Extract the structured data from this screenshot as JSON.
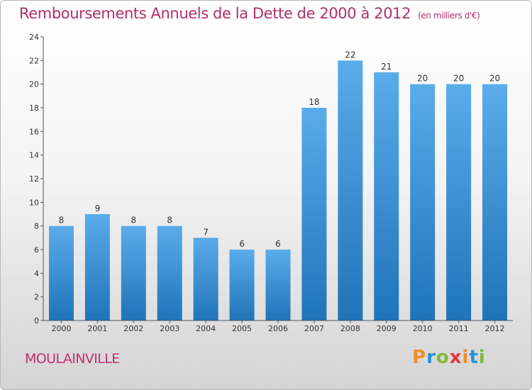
{
  "header": {
    "title": "Remboursements Annuels de la Dette de 2000 à 2012",
    "unit": "(en milliers d'€)"
  },
  "footer": {
    "town": "MOULAINVILLE",
    "logo": "Proxiti",
    "logo_colors": [
      "#f28c28",
      "#2a8fd6",
      "#7fba3c",
      "#e23a3a",
      "#f28c28",
      "#2a8fd6",
      "#7fba3c"
    ]
  },
  "colors": {
    "bar_top": "#5aaceb",
    "bar_bottom": "#1f74b8",
    "axis": "#555555",
    "title": "#b0306a"
  },
  "chart_data": {
    "type": "bar",
    "title": "Remboursements Annuels de la Dette de 2000 à 2012",
    "xlabel": "",
    "ylabel": "",
    "categories": [
      "2000",
      "2001",
      "2002",
      "2003",
      "2004",
      "2005",
      "2006",
      "2007",
      "2008",
      "2009",
      "2010",
      "2011",
      "2012"
    ],
    "values": [
      8,
      9,
      8,
      8,
      7,
      6,
      6,
      18,
      22,
      21,
      20,
      20,
      20
    ],
    "ylim": [
      0,
      24
    ],
    "yticks": [
      0,
      2,
      4,
      6,
      8,
      10,
      12,
      14,
      16,
      18,
      20,
      22,
      24
    ],
    "grid": false,
    "legend": "none"
  }
}
